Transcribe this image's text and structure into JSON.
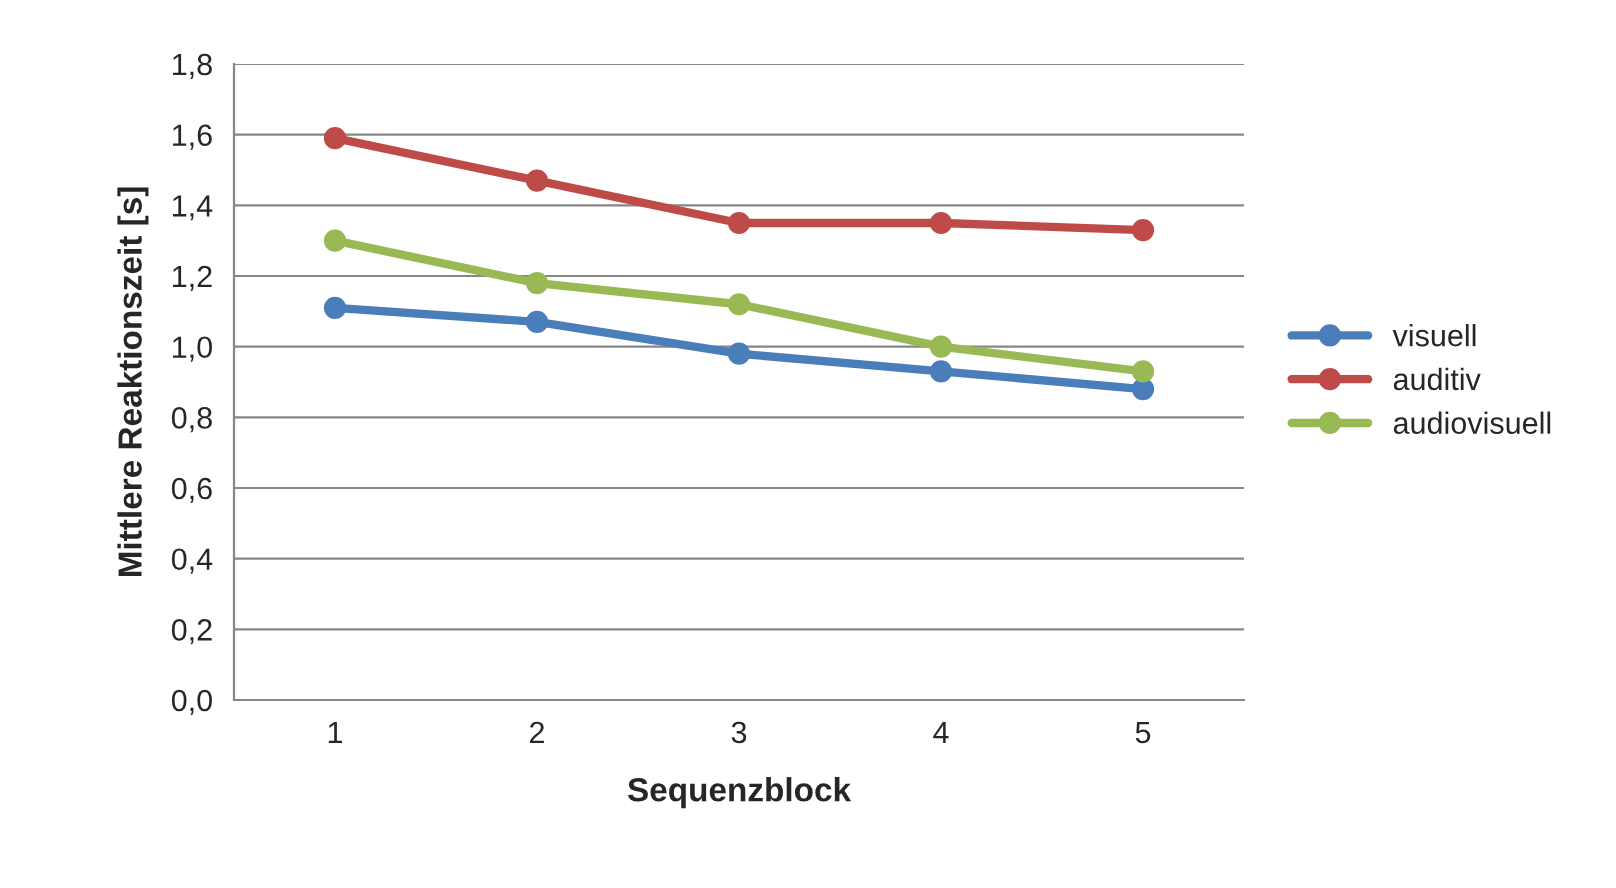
{
  "chart_data": {
    "type": "line",
    "xlabel": "Sequenzblock",
    "ylabel": "Mittlere Reaktionszeit [s]",
    "categories": [
      "1",
      "2",
      "3",
      "4",
      "5"
    ],
    "series": [
      {
        "name": "visuell",
        "color": "#4a7ebb",
        "values": [
          1.11,
          1.07,
          0.98,
          0.93,
          0.88
        ]
      },
      {
        "name": "auditiv",
        "color": "#be4b48",
        "values": [
          1.59,
          1.47,
          1.35,
          1.35,
          1.33
        ]
      },
      {
        "name": "audiovisuell",
        "color": "#98b954",
        "values": [
          1.3,
          1.18,
          1.12,
          1.0,
          0.93
        ]
      }
    ],
    "ylim": [
      0,
      1.8
    ],
    "yticks": [
      {
        "value": 0,
        "label": "0,0"
      },
      {
        "value": 0.2,
        "label": "0,2"
      },
      {
        "value": 0.4,
        "label": "0,4"
      },
      {
        "value": 0.6,
        "label": "0,6"
      },
      {
        "value": 0.8,
        "label": "0,8"
      },
      {
        "value": 1.0,
        "label": "1,0"
      },
      {
        "value": 1.2,
        "label": "1,2"
      },
      {
        "value": 1.4,
        "label": "1,4"
      },
      {
        "value": 1.6,
        "label": "1,6"
      },
      {
        "value": 1.8,
        "label": "1,8"
      }
    ],
    "grid": "y",
    "legend": "right",
    "marker": "circle",
    "line_style": "solid"
  }
}
